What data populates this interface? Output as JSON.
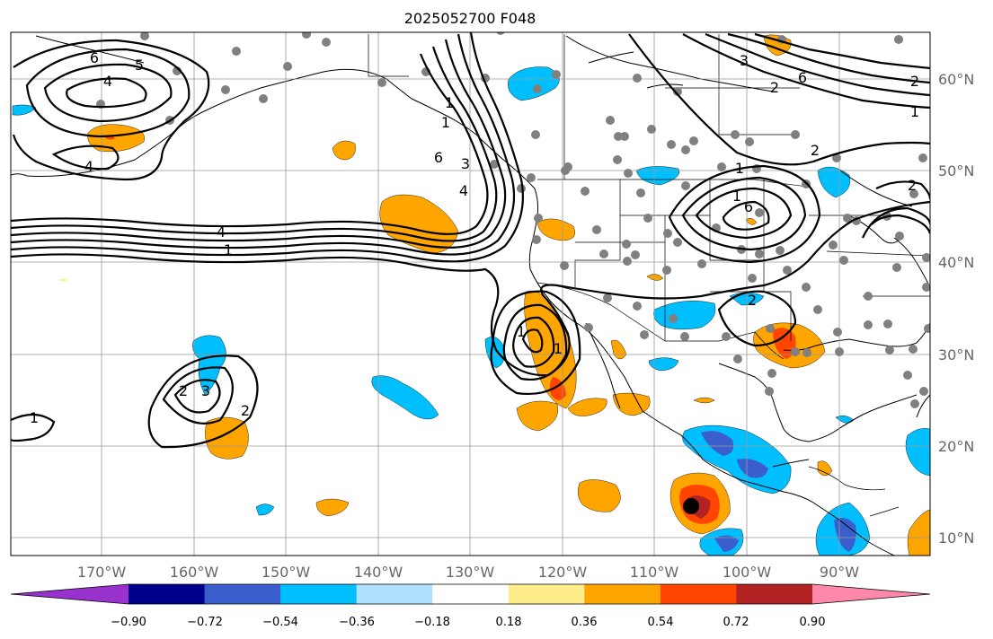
{
  "title": "2025052700 F048",
  "lon_ticks": [
    "170°W",
    "160°W",
    "150°W",
    "140°W",
    "130°W",
    "120°W",
    "110°W",
    "100°W",
    "90°W"
  ],
  "lat_ticks": [
    "60°N",
    "50°N",
    "40°N",
    "30°N",
    "20°N",
    "10°N"
  ],
  "contour_labels": [
    "6",
    "5",
    "4",
    "4",
    "4",
    "1",
    "6",
    "2",
    "3",
    "2",
    "1",
    "1",
    "1",
    "3",
    "6",
    "2",
    "6",
    "2",
    "2",
    "1",
    "1",
    "1",
    "4",
    "2",
    "2",
    "3",
    "1",
    "1"
  ],
  "colorbar": {
    "ticks": [
      "−0.90",
      "−0.72",
      "−0.54",
      "−0.36",
      "−0.18",
      "0.18",
      "0.36",
      "0.54",
      "0.72",
      "0.90"
    ],
    "colors": [
      "#9932cc",
      "#00008b",
      "#3a5fcd",
      "#00bfff",
      "#b0e2ff",
      "#ffffff",
      "#ffec8b",
      "#ffa500",
      "#ff4500",
      "#b22222",
      "#ff88aa"
    ]
  }
}
